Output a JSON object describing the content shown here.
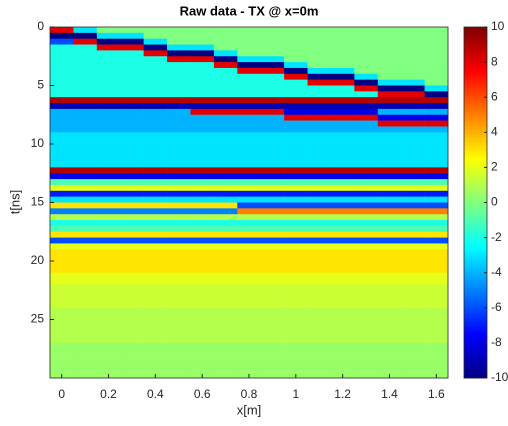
{
  "chart_data": {
    "type": "heatmap",
    "title": "Raw data - TX @ x=0m",
    "x_label": "x[m]",
    "y_label": "t[ns]",
    "colormap": "jet",
    "y_reversed": true,
    "xlim": [
      -0.05,
      1.65
    ],
    "xticks": [
      0,
      0.2,
      0.4,
      0.6,
      0.8,
      1,
      1.2,
      1.4,
      1.6
    ],
    "ylim": [
      0,
      30
    ],
    "yticks": [
      0,
      5,
      10,
      15,
      20,
      25
    ],
    "clim": [
      -10,
      10
    ],
    "cticks": [
      -10,
      -8,
      -6,
      -4,
      -2,
      0,
      2,
      4,
      6,
      8,
      10
    ],
    "x": [
      0,
      0.1,
      0.2,
      0.3,
      0.4,
      0.5,
      0.6,
      0.7,
      0.8,
      0.9,
      1,
      1.1,
      1.2,
      1.3,
      1.4,
      1.5,
      1.6
    ],
    "y": [
      0.25,
      0.75,
      1.25,
      1.75,
      2.25,
      2.75,
      3.25,
      3.75,
      4.25,
      4.75,
      5.25,
      5.75,
      6.25,
      6.75,
      7.25,
      7.75,
      8.25,
      8.75,
      9.25,
      9.75,
      10.25,
      10.75,
      11.25,
      11.75,
      12.25,
      12.75,
      13.25,
      13.75,
      14.25,
      14.75,
      15.25,
      15.75,
      16.25,
      16.75,
      17.25,
      17.75,
      18.25,
      18.75,
      19.25,
      19.75,
      20.25,
      20.75,
      21.25,
      21.75,
      22.25,
      22.75,
      23.25,
      23.75,
      24.25,
      24.75,
      25.25,
      25.75,
      26.25,
      26.75,
      27.25,
      27.75,
      28.25,
      28.75,
      29.25,
      29.75
    ],
    "z": [
      [
        8,
        -3,
        0,
        0,
        0,
        0,
        0,
        0,
        0,
        0,
        0,
        0,
        0,
        0,
        0,
        0,
        0
      ],
      [
        -10,
        -10,
        -3,
        -3,
        0,
        0,
        0,
        0,
        0,
        0,
        0,
        0,
        0,
        0,
        0,
        0,
        0
      ],
      [
        -6,
        8,
        -10,
        -10,
        -3,
        0,
        0,
        0,
        0,
        0,
        0,
        0,
        0,
        0,
        0,
        0,
        0
      ],
      [
        -2,
        -2,
        8,
        8,
        -10,
        -3,
        -3,
        0,
        0,
        0,
        0,
        0,
        0,
        0,
        0,
        0,
        0
      ],
      [
        -2,
        -2,
        -2,
        -2,
        8,
        -10,
        -10,
        -3,
        0,
        0,
        0,
        0,
        0,
        0,
        0,
        0,
        0
      ],
      [
        -2,
        -2,
        -2,
        -2,
        -2,
        8,
        8,
        -10,
        -3,
        -3,
        0,
        0,
        0,
        0,
        0,
        0,
        0
      ],
      [
        -2,
        -2,
        -2,
        -2,
        -2,
        -2,
        -2,
        8,
        -10,
        -10,
        -3,
        0,
        0,
        0,
        0,
        0,
        0
      ],
      [
        -2,
        -2,
        -2,
        -2,
        -2,
        -2,
        -2,
        -2,
        8,
        8,
        -10,
        -3,
        -3,
        0,
        0,
        0,
        0
      ],
      [
        -2,
        -2,
        -2,
        -2,
        -2,
        -2,
        -2,
        -2,
        -2,
        -2,
        8,
        -10,
        -10,
        -3,
        0,
        0,
        0
      ],
      [
        -2,
        -2,
        -2,
        -2,
        -2,
        -2,
        -2,
        -2,
        -2,
        -2,
        -2,
        8,
        8,
        -10,
        -3,
        -3,
        0
      ],
      [
        -2,
        -2,
        -2,
        -2,
        -2,
        -2,
        -2,
        -2,
        -2,
        -2,
        -2,
        -2,
        -2,
        8,
        -10,
        -10,
        -3
      ],
      [
        -2,
        -2,
        -2,
        -2,
        -2,
        -2,
        -2,
        -2,
        -2,
        -2,
        -2,
        -2,
        -2,
        -2,
        8,
        8,
        -10
      ],
      [
        9,
        9,
        9,
        9,
        9,
        9,
        9,
        9,
        9,
        9,
        9,
        9,
        9,
        9,
        9,
        9,
        9
      ],
      [
        -9,
        -9,
        -9,
        -9,
        -9,
        -9,
        -9,
        -9,
        -9,
        -9,
        -9,
        -9,
        -9,
        -9,
        -9,
        -9,
        -9
      ],
      [
        -4,
        -4,
        -4,
        -4,
        -4,
        -4,
        8,
        8,
        8,
        8,
        -8,
        -8,
        -8,
        -8,
        -4,
        -4,
        -4
      ],
      [
        -4,
        -4,
        -4,
        -4,
        -4,
        -4,
        -4,
        -4,
        -4,
        -4,
        8,
        8,
        8,
        8,
        -8,
        -8,
        -8
      ],
      [
        -4,
        -4,
        -4,
        -4,
        -4,
        -4,
        -4,
        -4,
        -4,
        -4,
        -4,
        -4,
        -4,
        -4,
        8,
        8,
        8
      ],
      [
        -4,
        -4,
        -4,
        -4,
        -4,
        -4,
        -4,
        -4,
        -4,
        -4,
        -4,
        -4,
        -4,
        -4,
        -4,
        -4,
        -4
      ],
      [
        -3,
        -3,
        -3,
        -3,
        -3,
        -3,
        -3,
        -3,
        -3,
        -3,
        -3,
        -3,
        -3,
        -3,
        -3,
        -3,
        -3
      ],
      [
        -3,
        -3,
        -3,
        -3,
        -3,
        -3,
        -3,
        -3,
        -3,
        -3,
        -3,
        -3,
        -3,
        -3,
        -3,
        -3,
        -3
      ],
      [
        -3,
        -3,
        -3,
        -3,
        -3,
        -3,
        -3,
        -3,
        -3,
        -3,
        -3,
        -3,
        -3,
        -3,
        -3,
        -3,
        -3
      ],
      [
        -3,
        -3,
        -3,
        -3,
        -3,
        -3,
        -3,
        -3,
        -3,
        -3,
        -3,
        -3,
        -3,
        -3,
        -3,
        -3,
        -3
      ],
      [
        -3,
        -3,
        -3,
        -3,
        -3,
        -3,
        -3,
        -3,
        -3,
        -3,
        -3,
        -3,
        -3,
        -3,
        -3,
        -3,
        -3
      ],
      [
        -3,
        -3,
        -3,
        -3,
        -3,
        -3,
        -3,
        -3,
        -3,
        -3,
        -3,
        -3,
        -3,
        -3,
        -3,
        -3,
        -3
      ],
      [
        9,
        9,
        9,
        9,
        9,
        9,
        9,
        9,
        9,
        9,
        9,
        9,
        9,
        9,
        9,
        9,
        9
      ],
      [
        -8,
        -8,
        -8,
        -8,
        -8,
        -8,
        -8,
        -8,
        -8,
        -8,
        -8,
        -8,
        -8,
        -8,
        -8,
        -8,
        -8
      ],
      [
        -1,
        -1,
        -1,
        -1,
        -1,
        -1,
        -1,
        -1,
        -1,
        -1,
        -1,
        -1,
        -1,
        -1,
        -1,
        -1,
        -1
      ],
      [
        2,
        2,
        2,
        2,
        2,
        2,
        2,
        2,
        2,
        2,
        2,
        2,
        2,
        2,
        2,
        2,
        2
      ],
      [
        -7,
        -7,
        -7,
        -7,
        -7,
        -7,
        -7,
        -7,
        -7,
        -7,
        -7,
        -7,
        -7,
        -7,
        -7,
        -7,
        -7
      ],
      [
        -3,
        -3,
        -3,
        -3,
        -3,
        -3,
        -3,
        -3,
        -3,
        -3,
        -3,
        -3,
        -3,
        -3,
        -3,
        -3,
        -3
      ],
      [
        3,
        3,
        3,
        3,
        3,
        3,
        3,
        3,
        -6,
        -6,
        -6,
        -6,
        -6,
        -6,
        -6,
        -6,
        -6
      ],
      [
        -5,
        -5,
        -5,
        -5,
        -5,
        -5,
        -5,
        -5,
        5,
        5,
        5,
        5,
        5,
        5,
        5,
        5,
        5
      ],
      [
        1,
        1,
        1,
        1,
        1,
        1,
        1,
        1,
        1,
        1,
        1,
        1,
        1,
        1,
        1,
        1,
        1
      ],
      [
        -2,
        -2,
        -2,
        -2,
        -2,
        -2,
        -2,
        -2,
        -2,
        -2,
        -2,
        -2,
        -2,
        -2,
        -2,
        -2,
        -2
      ],
      [
        -1,
        -1,
        -1,
        -1,
        -1,
        -1,
        -1,
        -1,
        -1,
        -1,
        -1,
        -1,
        -1,
        -1,
        -1,
        -1,
        -1
      ],
      [
        3,
        3,
        3,
        3,
        3,
        3,
        3,
        3,
        3,
        3,
        3,
        3,
        3,
        3,
        3,
        3,
        3
      ],
      [
        -6,
        -6,
        -6,
        -6,
        -6,
        -6,
        -6,
        -6,
        -6,
        -6,
        -6,
        -6,
        -6,
        -6,
        -6,
        -6,
        -6
      ],
      [
        2,
        2,
        2,
        2,
        2,
        2,
        2,
        2,
        2,
        2,
        2,
        2,
        2,
        2,
        2,
        2,
        2
      ],
      [
        3,
        3,
        3,
        3,
        3,
        3,
        3,
        3,
        3,
        3,
        3,
        3,
        3,
        3,
        3,
        3,
        3
      ],
      [
        3,
        3,
        3,
        3,
        3,
        3,
        3,
        3,
        3,
        3,
        3,
        3,
        3,
        3,
        3,
        3,
        3
      ],
      [
        3,
        3,
        3,
        3,
        3,
        3,
        3,
        3,
        3,
        3,
        3,
        3,
        3,
        3,
        3,
        3,
        3
      ],
      [
        3,
        3,
        3,
        3,
        3,
        3,
        3,
        3,
        3,
        3,
        3,
        3,
        3,
        3,
        3,
        3,
        3
      ],
      [
        2,
        2,
        2,
        2,
        2,
        2,
        2,
        2,
        2,
        2,
        2,
        2,
        2,
        2,
        2,
        2,
        2
      ],
      [
        2,
        2,
        2,
        2,
        2,
        2,
        2,
        2,
        2,
        2,
        2,
        2,
        2,
        2,
        2,
        2,
        2
      ],
      [
        1.5,
        1.5,
        1.5,
        1.5,
        1.5,
        1.5,
        1.5,
        1.5,
        1.5,
        1.5,
        1.5,
        1.5,
        1.5,
        1.5,
        1.5,
        1.5,
        1.5
      ],
      [
        1.5,
        1.5,
        1.5,
        1.5,
        1.5,
        1.5,
        1.5,
        1.5,
        1.5,
        1.5,
        1.5,
        1.5,
        1.5,
        1.5,
        1.5,
        1.5,
        1.5
      ],
      [
        1.5,
        1.5,
        1.5,
        1.5,
        1.5,
        1.5,
        1.5,
        1.5,
        1.5,
        1.5,
        1.5,
        1.5,
        1.5,
        1.5,
        1.5,
        1.5,
        1.5
      ],
      [
        1.5,
        1.5,
        1.5,
        1.5,
        1.5,
        1.5,
        1.5,
        1.5,
        1.5,
        1.5,
        1.5,
        1.5,
        1.5,
        1.5,
        1.5,
        1.5,
        1.5
      ],
      [
        1,
        1,
        1,
        1,
        1,
        1,
        1,
        1,
        1,
        1,
        1,
        1,
        1,
        1,
        1,
        1,
        1
      ],
      [
        1,
        1,
        1,
        1,
        1,
        1,
        1,
        1,
        1,
        1,
        1,
        1,
        1,
        1,
        1,
        1,
        1
      ],
      [
        1,
        1,
        1,
        1,
        1,
        1,
        1,
        1,
        1,
        1,
        1,
        1,
        1,
        1,
        1,
        1,
        1
      ],
      [
        1,
        1,
        1,
        1,
        1,
        1,
        1,
        1,
        1,
        1,
        1,
        1,
        1,
        1,
        1,
        1,
        1
      ],
      [
        1,
        1,
        1,
        1,
        1,
        1,
        1,
        1,
        1,
        1,
        1,
        1,
        1,
        1,
        1,
        1,
        1
      ],
      [
        1,
        1,
        1,
        1,
        1,
        1,
        1,
        1,
        1,
        1,
        1,
        1,
        1,
        1,
        1,
        1,
        1
      ],
      [
        0.5,
        0.5,
        0.5,
        0.5,
        0.5,
        0.5,
        0.5,
        0.5,
        0.5,
        0.5,
        0.5,
        0.5,
        0.5,
        0.5,
        0.5,
        0.5,
        0.5
      ],
      [
        0.5,
        0.5,
        0.5,
        0.5,
        0.5,
        0.5,
        0.5,
        0.5,
        0.5,
        0.5,
        0.5,
        0.5,
        0.5,
        0.5,
        0.5,
        0.5,
        0.5
      ],
      [
        0.5,
        0.5,
        0.5,
        0.5,
        0.5,
        0.5,
        0.5,
        0.5,
        0.5,
        0.5,
        0.5,
        0.5,
        0.5,
        0.5,
        0.5,
        0.5,
        0.5
      ],
      [
        0.5,
        0.5,
        0.5,
        0.5,
        0.5,
        0.5,
        0.5,
        0.5,
        0.5,
        0.5,
        0.5,
        0.5,
        0.5,
        0.5,
        0.5,
        0.5,
        0.5
      ],
      [
        0.5,
        0.5,
        0.5,
        0.5,
        0.5,
        0.5,
        0.5,
        0.5,
        0.5,
        0.5,
        0.5,
        0.5,
        0.5,
        0.5,
        0.5,
        0.5,
        0.5
      ],
      [
        0.5,
        0.5,
        0.5,
        0.5,
        0.5,
        0.5,
        0.5,
        0.5,
        0.5,
        0.5,
        0.5,
        0.5,
        0.5,
        0.5,
        0.5,
        0.5,
        0.5
      ]
    ]
  }
}
